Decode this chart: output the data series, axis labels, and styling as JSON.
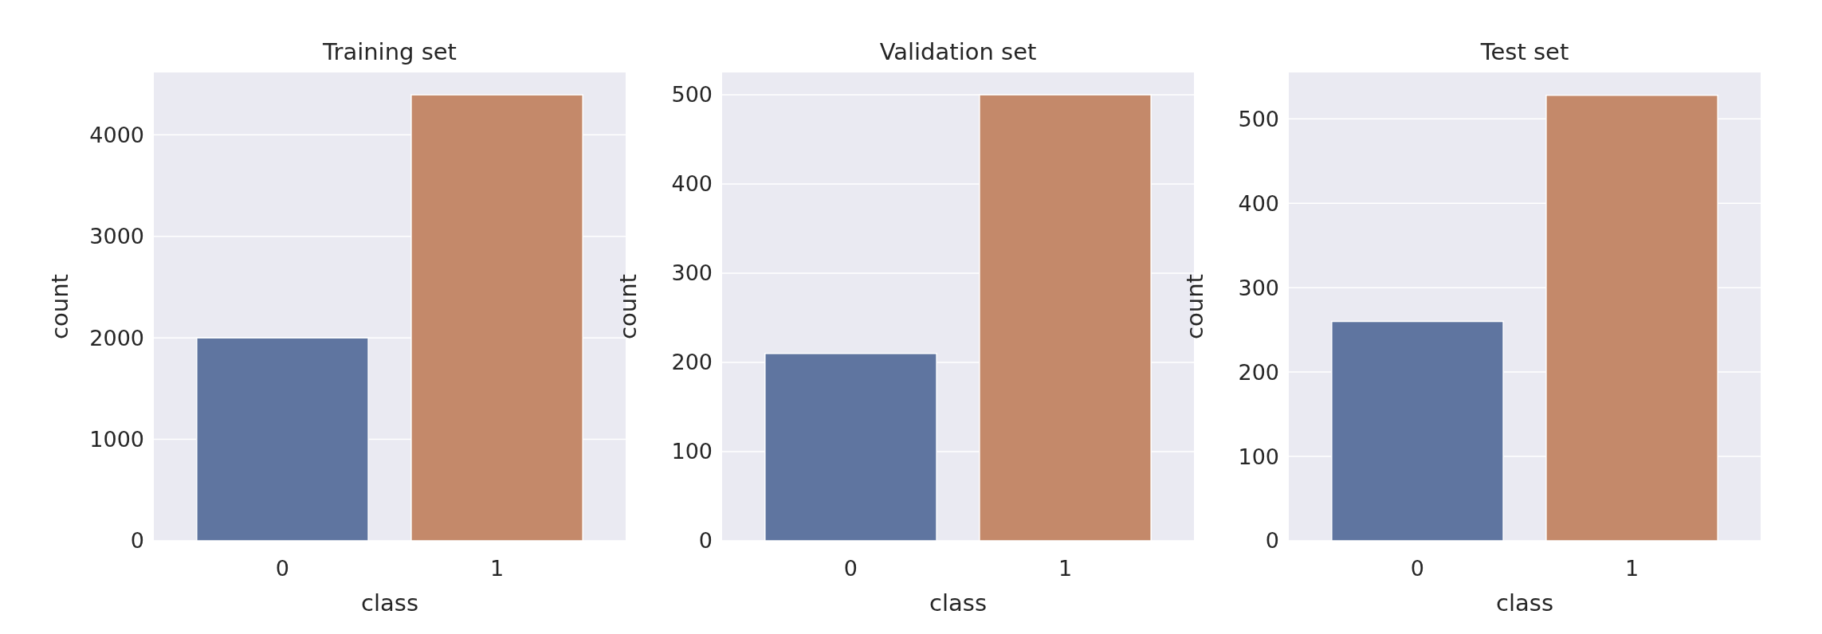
{
  "chart_data": [
    {
      "type": "bar",
      "title": "Training set",
      "xlabel": "class",
      "ylabel": "count",
      "categories": [
        "0",
        "1"
      ],
      "values": [
        2000,
        4395
      ],
      "colors": [
        "#5f75a0",
        "#c4896a"
      ],
      "ylim": [
        0,
        4615
      ],
      "yticks": [
        0,
        1000,
        2000,
        3000,
        4000
      ],
      "grid": true
    },
    {
      "type": "bar",
      "title": "Validation set",
      "xlabel": "class",
      "ylabel": "count",
      "categories": [
        "0",
        "1"
      ],
      "values": [
        210,
        500
      ],
      "colors": [
        "#5f75a0",
        "#c4896a"
      ],
      "ylim": [
        0,
        525
      ],
      "yticks": [
        0,
        100,
        200,
        300,
        400,
        500
      ],
      "grid": true
    },
    {
      "type": "bar",
      "title": "Test set",
      "xlabel": "class",
      "ylabel": "count",
      "categories": [
        "0",
        "1"
      ],
      "values": [
        260,
        528
      ],
      "colors": [
        "#5f75a0",
        "#c4896a"
      ],
      "ylim": [
        0,
        555
      ],
      "yticks": [
        0,
        100,
        200,
        300,
        400,
        500
      ],
      "grid": true
    }
  ]
}
